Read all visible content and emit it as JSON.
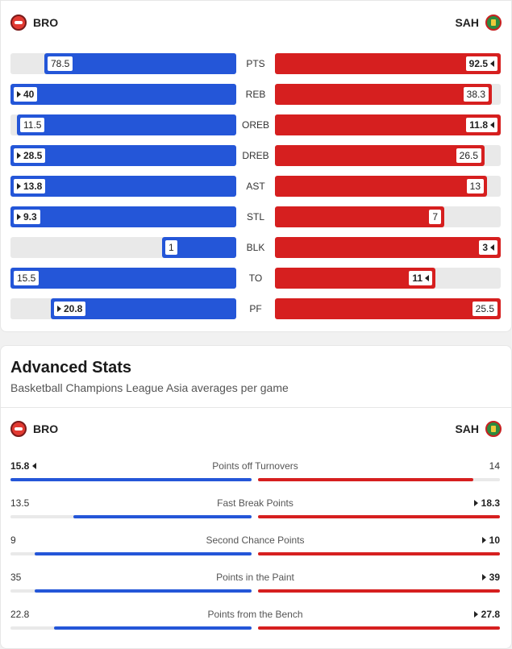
{
  "teams": {
    "home": {
      "abbr": "BRO",
      "color": "#2456d8"
    },
    "away": {
      "abbr": "SAH",
      "color": "#d61f1f"
    }
  },
  "stats": [
    {
      "label": "PTS",
      "home": "78.5",
      "away": "92.5",
      "home_frac": 0.85,
      "away_frac": 1.0,
      "leader": "away"
    },
    {
      "label": "REB",
      "home": "40",
      "away": "38.3",
      "home_frac": 1.0,
      "away_frac": 0.96,
      "leader": "home"
    },
    {
      "label": "OREB",
      "home": "11.5",
      "away": "11.8",
      "home_frac": 0.97,
      "away_frac": 1.0,
      "leader": "away"
    },
    {
      "label": "DREB",
      "home": "28.5",
      "away": "26.5",
      "home_frac": 1.0,
      "away_frac": 0.93,
      "leader": "home"
    },
    {
      "label": "AST",
      "home": "13.8",
      "away": "13",
      "home_frac": 1.0,
      "away_frac": 0.94,
      "leader": "home"
    },
    {
      "label": "STL",
      "home": "9.3",
      "away": "7",
      "home_frac": 1.0,
      "away_frac": 0.75,
      "leader": "home"
    },
    {
      "label": "BLK",
      "home": "1",
      "away": "3",
      "home_frac": 0.33,
      "away_frac": 1.0,
      "leader": "away"
    },
    {
      "label": "TO",
      "home": "15.5",
      "away": "11",
      "home_frac": 1.0,
      "away_frac": 0.71,
      "leader": "away"
    },
    {
      "label": "PF",
      "home": "20.8",
      "away": "25.5",
      "home_frac": 0.82,
      "away_frac": 1.0,
      "leader": "home"
    }
  ],
  "advanced": {
    "title": "Advanced Stats",
    "subtitle": "Basketball Champions League Asia averages per game",
    "rows": [
      {
        "label": "Points off Turnovers",
        "home": "15.8",
        "away": "14",
        "home_frac": 1.0,
        "away_frac": 0.89,
        "leader": "home"
      },
      {
        "label": "Fast Break Points",
        "home": "13.5",
        "away": "18.3",
        "home_frac": 0.74,
        "away_frac": 1.0,
        "leader": "away"
      },
      {
        "label": "Second Chance Points",
        "home": "9",
        "away": "10",
        "home_frac": 0.9,
        "away_frac": 1.0,
        "leader": "away"
      },
      {
        "label": "Points in the Paint",
        "home": "35",
        "away": "39",
        "home_frac": 0.9,
        "away_frac": 1.0,
        "leader": "away"
      },
      {
        "label": "Points from the Bench",
        "home": "22.8",
        "away": "27.8",
        "home_frac": 0.82,
        "away_frac": 1.0,
        "leader": "away"
      }
    ]
  }
}
